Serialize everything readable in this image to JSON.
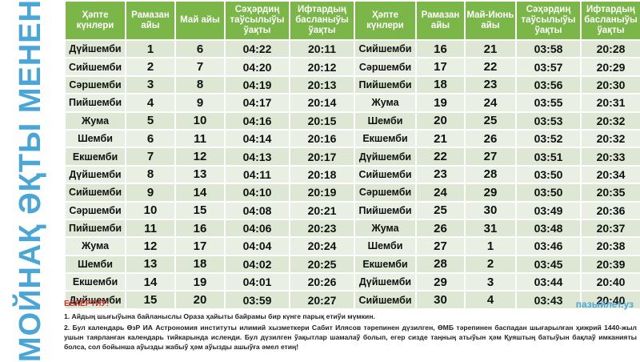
{
  "side_title": "МОЙНАҚ ӘҚТЫ МЕНЕН",
  "headers": [
    "Ҳәпте күнлери",
    "Рамазан айы",
    "Май айы",
    "Сәҳәрдиң таўсылыўы ўақты",
    "Ифтардың басланыўы ўақты",
    "Ҳәпте күнлери",
    "Рамазан айы",
    "Май-Июнь айы",
    "Сәҳәрдиң таўсылыўы ўақты",
    "Ифтардың басланыўы ўақты"
  ],
  "rows": [
    [
      "Дүйшемби",
      "1",
      "6",
      "04:22",
      "20:11",
      "Сийшемби",
      "16",
      "21",
      "03:58",
      "20:28"
    ],
    [
      "Сийшемби",
      "2",
      "7",
      "04:20",
      "20:12",
      "Сәршемби",
      "17",
      "22",
      "03:57",
      "20:29"
    ],
    [
      "Сәршемби",
      "3",
      "8",
      "04:19",
      "20:13",
      "Пийшемби",
      "18",
      "23",
      "03:56",
      "20:30"
    ],
    [
      "Пийшемби",
      "4",
      "9",
      "04:17",
      "20:14",
      "Жума",
      "19",
      "24",
      "03:55",
      "20:31"
    ],
    [
      "Жума",
      "5",
      "10",
      "04:16",
      "20:15",
      "Шемби",
      "20",
      "25",
      "03:53",
      "20:32"
    ],
    [
      "Шемби",
      "6",
      "11",
      "04:14",
      "20:16",
      "Екшемби",
      "21",
      "26",
      "03:52",
      "20:32"
    ],
    [
      "Екшемби",
      "7",
      "12",
      "04:13",
      "20:17",
      "Дүйшемби",
      "22",
      "27",
      "03:51",
      "20:33"
    ],
    [
      "Дүйшемби",
      "8",
      "13",
      "04:11",
      "20:18",
      "Сийшемби",
      "23",
      "28",
      "03:50",
      "20:34"
    ],
    [
      "Сийшемби",
      "9",
      "14",
      "04:10",
      "20:19",
      "Сәршемби",
      "24",
      "29",
      "03:50",
      "20:35"
    ],
    [
      "Сәршемби",
      "10",
      "15",
      "04:08",
      "20:21",
      "Пийшемби",
      "25",
      "30",
      "03:49",
      "20:36"
    ],
    [
      "Пийшемби",
      "11",
      "16",
      "04:06",
      "20:23",
      "Жума",
      "26",
      "31",
      "03:48",
      "20:37"
    ],
    [
      "Жума",
      "12",
      "17",
      "04:04",
      "20:24",
      "Шемби",
      "27",
      "1",
      "03:46",
      "20:38"
    ],
    [
      "Шемби",
      "13",
      "18",
      "04:02",
      "20:25",
      "Екшемби",
      "28",
      "2",
      "03:45",
      "20:39"
    ],
    [
      "Екшемби",
      "14",
      "19",
      "04:01",
      "20:26",
      "Дүйшемби",
      "29",
      "3",
      "03:44",
      "20:40"
    ],
    [
      "Дүйшемби",
      "15",
      "20",
      "03:59",
      "20:27",
      "Сийшемби",
      "30",
      "4",
      "03:43",
      "20:40"
    ]
  ],
  "notes": {
    "heading": "ЕСКЕРТИЎ:",
    "website": "пазыйлет.уз",
    "items": [
      "1.   Айдың шығыўына байланыслы Ораза ҳайыты байрамы бир күнге парық етиўи мүмкин.",
      "2.  Бул календарь ӨзР ИА Астрономия институты илимий хызметкери Сабит Илясов тәрепинен дүзилген, ӨМБ тәрепинен баспадан шығарылған ҳижрий 1440-жыл ушын таярланған календарь тийкарында исленди. Бул дүзилген ўақытлар шамалаў болып, егер сизде таңның атыўын ҳәм Қуяштың батыўын бақлаў имканияты болса, сол бойынша аўызды жабыў ҳәм аўызды ашыўға әмел етиң!"
    ]
  }
}
